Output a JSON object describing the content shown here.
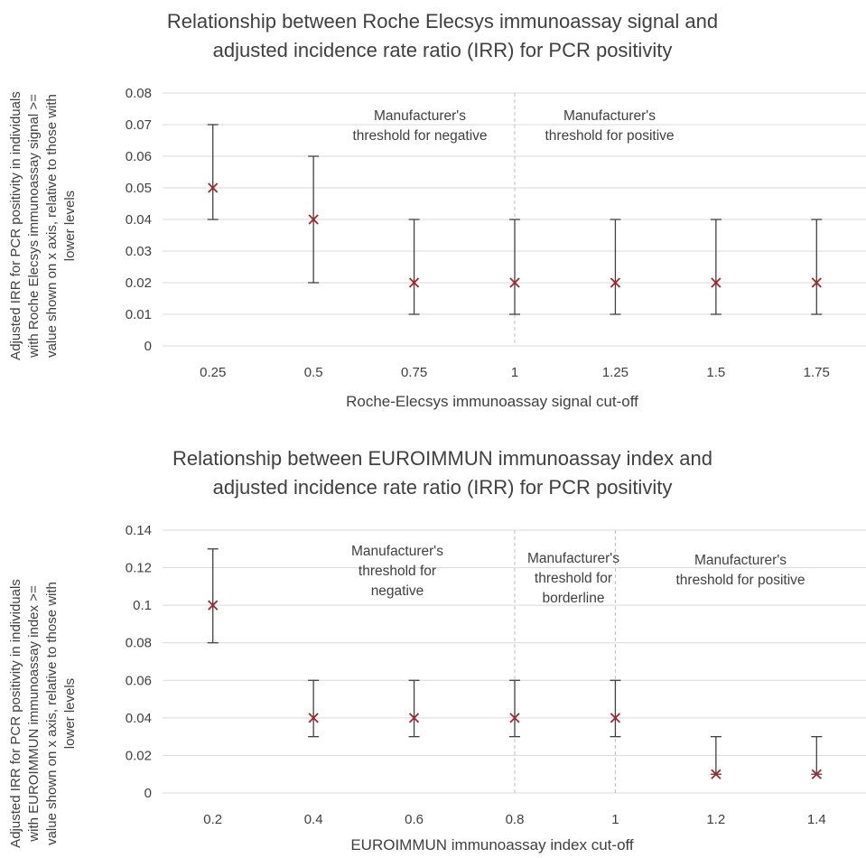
{
  "chart_data": [
    {
      "type": "scatter",
      "title_lines": [
        "Relationship between Roche Elecsys immunoassay signal and",
        "adjusted incidence rate ratio (IRR) for PCR positivity"
      ],
      "ylabel_lines": [
        "Adjusted IRR for PCR positivity in individuals",
        "with Roche Elecsys immunoassay signal >=",
        "value shown on x axis, relative to those with",
        "lower levels"
      ],
      "xlabel": "Roche-Elecsys immunoassay signal cut-off",
      "categories": [
        "0.25",
        "0.5",
        "0.75",
        "1",
        "1.25",
        "1.5",
        "1.75"
      ],
      "values": [
        0.05,
        0.04,
        0.02,
        0.02,
        0.02,
        0.02,
        0.02
      ],
      "err_low": [
        0.04,
        0.02,
        0.01,
        0.01,
        0.01,
        0.01,
        0.01
      ],
      "err_high": [
        0.07,
        0.06,
        0.04,
        0.04,
        0.04,
        0.04,
        0.04
      ],
      "ylim": [
        0,
        0.08
      ],
      "yticks": [
        "0",
        "0.01",
        "0.02",
        "0.03",
        "0.04",
        "0.05",
        "0.06",
        "0.07",
        "0.08"
      ],
      "grid": true,
      "marker_color": "#A0282D",
      "thresholds": [
        {
          "category": "1",
          "label_left_lines": [
            "Manufacturer's",
            "threshold for negative"
          ],
          "label_right_lines": [
            "Manufacturer's",
            "threshold for positive"
          ]
        }
      ]
    },
    {
      "type": "scatter",
      "title_lines": [
        "Relationship between EUROIMMUN immunoassay index and",
        "adjusted incidence rate ratio (IRR) for PCR positivity"
      ],
      "ylabel_lines": [
        "Adjusted IRR for PCR positivity in individuals",
        "with EUROIMMUN immunoassay index >=",
        "value shown on x axis, relative to those with",
        "lower levels"
      ],
      "xlabel": "EUROIMMUN immunoassay index cut-off",
      "categories": [
        "0.2",
        "0.4",
        "0.6",
        "0.8",
        "1",
        "1.2",
        "1.4"
      ],
      "values": [
        0.1,
        0.04,
        0.04,
        0.04,
        0.04,
        0.01,
        0.01
      ],
      "err_low": [
        0.08,
        0.03,
        0.03,
        0.03,
        0.03,
        0.01,
        0.01
      ],
      "err_high": [
        0.13,
        0.06,
        0.06,
        0.06,
        0.06,
        0.03,
        0.03
      ],
      "ylim": [
        0,
        0.14
      ],
      "yticks": [
        "0",
        "0.02",
        "0.04",
        "0.06",
        "0.08",
        "0.1",
        "0.12",
        "0.14"
      ],
      "grid": true,
      "marker_color": "#A0282D",
      "thresholds": [
        {
          "category": "0.8"
        },
        {
          "category": "1"
        }
      ],
      "annotations": [
        {
          "lines": [
            "Manufacturer's",
            "threshold for",
            "negative"
          ]
        },
        {
          "lines": [
            "Manufacturer's",
            "threshold for",
            "borderline"
          ]
        },
        {
          "lines": [
            "Manufacturer's",
            "threshold for positive"
          ]
        }
      ]
    }
  ]
}
